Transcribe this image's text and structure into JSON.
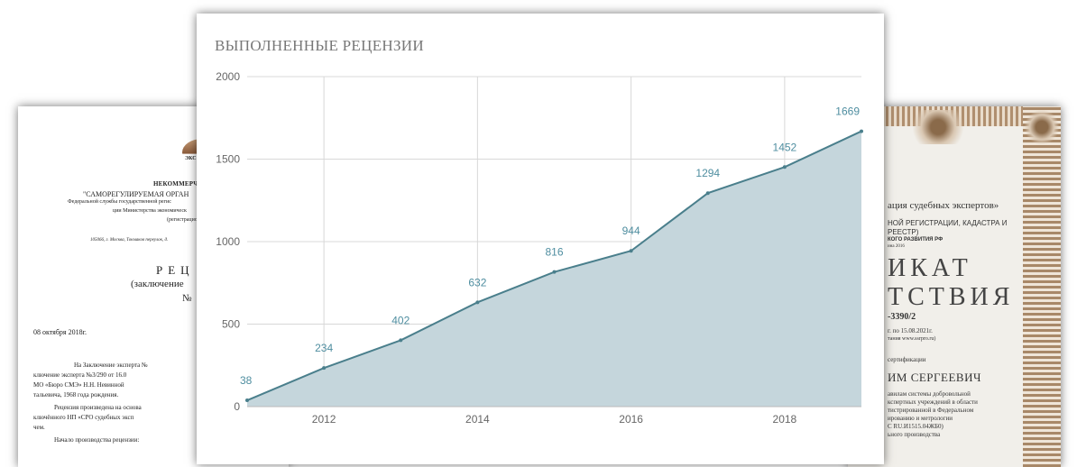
{
  "doc_left": {
    "logo_text": "ЭКС",
    "org": "НЕКОММЕРЧЕС",
    "line1": "\"САМОРЕГУЛИРУЕМАЯ ОРГАН",
    "line2": "Федеральной службы государственной регис",
    "line3": "ции Министерства экономическ",
    "line4": "(регистрацион",
    "address": "105066, г. Москва, Токмаков переулок, д.",
    "heading": "РЕЦ",
    "subheading": "(заключение",
    "number": "№",
    "date": "08 октября 2018г.",
    "para": [
      "На Заключение эксперта №",
      "ключение эксперта №3/290 от 16.0",
      "МО «Бюро СМЭ» Н.Н. Невинной",
      "тальевича, 1968 года рождения.",
      "Рецензия произведена на основа",
      "ключённого НП «СРО судебных эксп",
      "чем.",
      "Начало производства рецензии:"
    ]
  },
  "doc_right": {
    "line1": "ация судебных экспертов»",
    "line2": "НОЙ РЕГИСТРАЦИИ, КАДАСТРА И",
    "line3": "РЕЕСТР)",
    "line4": "КОГО РАЗВИТИЯ РФ",
    "line5": "ина 2016",
    "big1": "ИКАТ",
    "big2": "ТСТВИЯ",
    "num": "-3390/2",
    "valid": "г. по 15.08.2021г.",
    "site": "тания www.ssrpro.ru)",
    "cert": "сертификации",
    "name": "ИМ СЕРГЕЕВИЧ",
    "t1": "авилам системы добровольной",
    "t2": "кспертных учреждений в области",
    "t3": "тистрированной в Федеральном",
    "t4": "ированию и метрологии",
    "t5": "С RU.И1515.04ЖБ0)",
    "t6": "ьного производства"
  },
  "chart_data": {
    "type": "area",
    "title": "ВЫПОЛНЕННЫЕ РЕЦЕНЗИИ",
    "x": [
      2011,
      2012,
      2013,
      2014,
      2015,
      2016,
      2017,
      2018,
      2019
    ],
    "values": [
      38,
      234,
      402,
      632,
      816,
      944,
      1294,
      1452,
      1669
    ],
    "xticks": [
      "2012",
      "2014",
      "2016",
      "2018"
    ],
    "xtick_values": [
      2012,
      2014,
      2016,
      2018
    ],
    "yticks": [
      "0",
      "500",
      "1000",
      "1500",
      "2000"
    ],
    "ytick_values": [
      0,
      500,
      1000,
      1500,
      2000
    ],
    "ylim": [
      0,
      2000
    ],
    "xlim": [
      2011,
      2019
    ],
    "grid": true,
    "colors": {
      "line": "#4a7f8c",
      "fill": "#c5d6dc",
      "label": "#4f8ea0",
      "grid": "#d8d8d8"
    }
  }
}
